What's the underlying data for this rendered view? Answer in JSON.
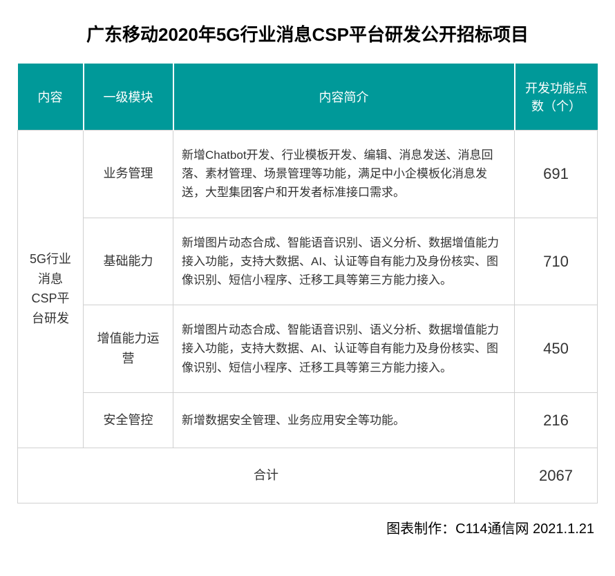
{
  "title": "广东移动2020年5G行业消息CSP平台研发公开招标项目",
  "table": {
    "headers": {
      "content": "内容",
      "module": "一级模块",
      "description": "内容简介",
      "count": "开发功能点数（个）"
    },
    "content_cell": "5G行业消息CSP平台研发",
    "rows": {
      "r0": {
        "module": "业务管理",
        "desc": "新增Chatbot开发、行业模板开发、编辑、消息发送、消息回落、素材管理、场景管理等功能，满足中小企模板化消息发送，大型集团客户和开发者标准接口需求。",
        "num": "691"
      },
      "r1": {
        "module": "基础能力",
        "desc": "新增图片动态合成、智能语音识别、语义分析、数据增值能力接入功能，支持大数据、AI、认证等自有能力及身份核实、图像识别、短信小程序、迁移工具等第三方能力接入。",
        "num": "710"
      },
      "r2": {
        "module": "增值能力运营",
        "desc": "新增图片动态合成、智能语音识别、语义分析、数据增值能力接入功能，支持大数据、AI、认证等自有能力及身份核实、图像识别、短信小程序、迁移工具等第三方能力接入。",
        "num": "450"
      },
      "r3": {
        "module": "安全管控",
        "desc": "新增数据安全管理、业务应用安全等功能。",
        "num": "216"
      }
    },
    "total": {
      "label": "合计",
      "num": "2067"
    }
  },
  "credit": "图表制作：C114通信网  2021.1.21",
  "colors": {
    "header_bg": "#009999",
    "header_fg": "#ffffff",
    "border": "#d0d0d0"
  }
}
